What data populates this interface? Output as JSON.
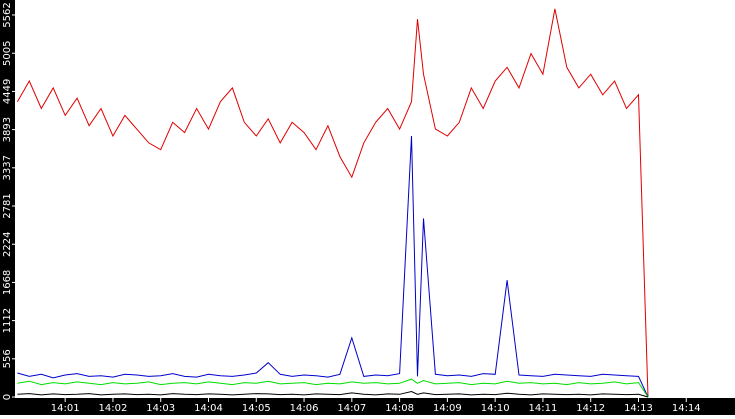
{
  "chart_data": {
    "type": "line",
    "x": [
      840,
      840.25,
      840.5,
      840.75,
      841,
      841.25,
      841.5,
      841.75,
      842,
      842.25,
      842.5,
      842.75,
      843,
      843.25,
      843.5,
      843.75,
      844,
      844.25,
      844.5,
      844.75,
      845,
      845.25,
      845.5,
      845.75,
      846,
      846.25,
      846.5,
      846.75,
      847,
      847.25,
      847.5,
      847.75,
      848,
      848.25,
      848.375,
      848.5,
      848.75,
      849,
      849.25,
      849.5,
      849.75,
      850,
      850.25,
      850.5,
      850.75,
      851,
      851.25,
      851.5,
      851.75,
      852,
      852.25,
      852.5,
      852.75,
      853,
      853.2
    ],
    "series": [
      {
        "color": "#e00000",
        "values": [
          4300,
          4600,
          4200,
          4500,
          4100,
          4350,
          3950,
          4200,
          3800,
          4100,
          3900,
          3700,
          3600,
          4000,
          3850,
          4200,
          3900,
          4300,
          4500,
          4000,
          3800,
          4050,
          3700,
          4000,
          3850,
          3600,
          3950,
          3500,
          3200,
          3700,
          4000,
          4200,
          3900,
          4300,
          5500,
          4700,
          3900,
          3800,
          4000,
          4500,
          4200,
          4600,
          4800,
          4500,
          5000,
          4700,
          5650,
          4800,
          4500,
          4700,
          4400,
          4600,
          4200,
          4400,
          0
        ]
      },
      {
        "color": "#0000cc",
        "values": [
          350,
          300,
          330,
          280,
          320,
          340,
          300,
          310,
          290,
          330,
          320,
          300,
          310,
          340,
          300,
          290,
          330,
          310,
          300,
          320,
          350,
          500,
          330,
          300,
          320,
          310,
          290,
          330,
          860,
          300,
          320,
          310,
          340,
          3800,
          300,
          2600,
          330,
          310,
          320,
          300,
          340,
          330,
          1700,
          320,
          310,
          300,
          330,
          320,
          310,
          300,
          330,
          320,
          310,
          300,
          0
        ]
      },
      {
        "color": "#00dd00",
        "values": [
          200,
          230,
          180,
          210,
          190,
          220,
          200,
          180,
          210,
          190,
          200,
          220,
          180,
          200,
          210,
          190,
          220,
          200,
          180,
          210,
          200,
          230,
          190,
          200,
          210,
          180,
          200,
          190,
          220,
          200,
          210,
          190,
          200,
          260,
          200,
          240,
          190,
          200,
          210,
          180,
          200,
          190,
          230,
          200,
          210,
          190,
          200,
          180,
          210,
          190,
          200,
          220,
          190,
          210,
          0
        ]
      },
      {
        "color": "#000000",
        "values": [
          40,
          50,
          30,
          45,
          35,
          40,
          50,
          30,
          40,
          45,
          35,
          40,
          30,
          50,
          40,
          35,
          45,
          40,
          30,
          40,
          50,
          45,
          35,
          40,
          30,
          45,
          40,
          35,
          60,
          40,
          30,
          45,
          40,
          80,
          40,
          60,
          35,
          40,
          45,
          30,
          40,
          35,
          55,
          40,
          30,
          45,
          40,
          35,
          40,
          30,
          45,
          40,
          35,
          40,
          0
        ]
      }
    ],
    "xlim": [
      839.95,
      855.02
    ],
    "xticks": [
      {
        "value": 841,
        "label": "14:01"
      },
      {
        "value": 842,
        "label": "14:02"
      },
      {
        "value": 843,
        "label": "14:03"
      },
      {
        "value": 844,
        "label": "14:04"
      },
      {
        "value": 845,
        "label": "14:05"
      },
      {
        "value": 846,
        "label": "14:06"
      },
      {
        "value": 847,
        "label": "14:07"
      },
      {
        "value": 848,
        "label": "14:08"
      },
      {
        "value": 849,
        "label": "14:09"
      },
      {
        "value": 850,
        "label": "14:10"
      },
      {
        "value": 851,
        "label": "14:11"
      },
      {
        "value": 852,
        "label": "14:12"
      },
      {
        "value": 853,
        "label": "14:13"
      },
      {
        "value": 854,
        "label": "14:14"
      }
    ],
    "ylim": [
      0,
      5780
    ],
    "yticks": [
      0,
      556,
      1112,
      1668,
      2224,
      2781,
      3337,
      3893,
      4449,
      5005,
      5562
    ]
  }
}
